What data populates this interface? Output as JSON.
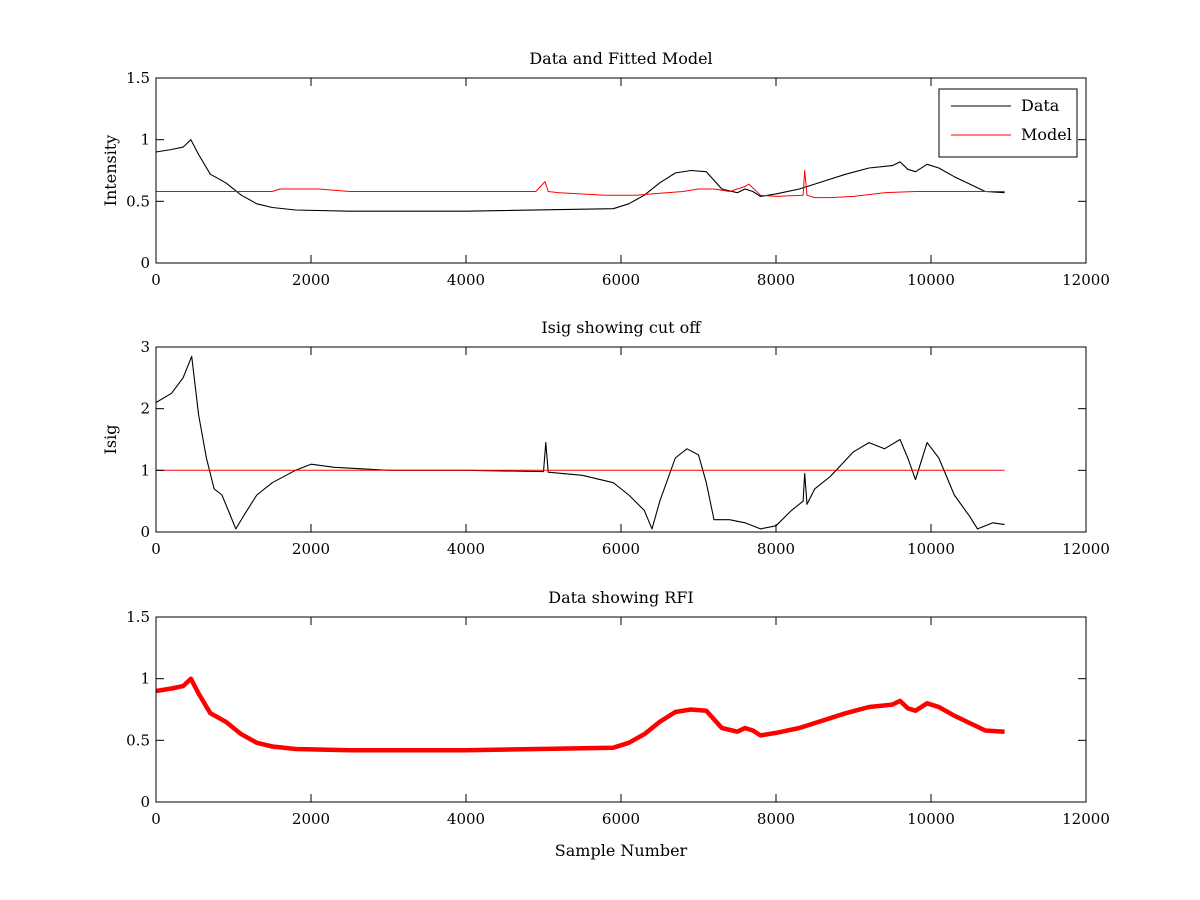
{
  "figure": {
    "background": "#ffffff"
  },
  "chart_data": [
    {
      "type": "line",
      "title": "Data and Fitted Model",
      "xlabel": "",
      "ylabel": "Intensity",
      "xlim": [
        0,
        12000
      ],
      "ylim": [
        0,
        1.5
      ],
      "xticks": [
        0,
        2000,
        4000,
        6000,
        8000,
        10000,
        12000
      ],
      "yticks": [
        0,
        0.5,
        1,
        1.5
      ],
      "xtick_labels": [
        "0",
        "2000",
        "4000",
        "6000",
        "8000",
        "10000",
        "12000"
      ],
      "ytick_labels": [
        "0",
        "0.5",
        "1",
        "1.5"
      ],
      "grid": false,
      "legend": "top-right",
      "series": [
        {
          "name": "Data",
          "color": "#000000",
          "x": [
            0,
            200,
            350,
            450,
            550,
            700,
            900,
            1100,
            1300,
            1500,
            1800,
            2500,
            4000,
            5900,
            6100,
            6300,
            6500,
            6700,
            6900,
            7100,
            7300,
            7500,
            7600,
            7700,
            7800,
            8000,
            8300,
            8600,
            8900,
            9200,
            9500,
            9600,
            9700,
            9800,
            9950,
            10100,
            10300,
            10500,
            10700,
            10950
          ],
          "y": [
            0.9,
            0.92,
            0.94,
            1.0,
            0.88,
            0.72,
            0.65,
            0.55,
            0.48,
            0.45,
            0.43,
            0.42,
            0.42,
            0.44,
            0.48,
            0.55,
            0.65,
            0.73,
            0.75,
            0.74,
            0.6,
            0.57,
            0.6,
            0.58,
            0.54,
            0.56,
            0.6,
            0.66,
            0.72,
            0.77,
            0.79,
            0.82,
            0.76,
            0.74,
            0.8,
            0.77,
            0.7,
            0.64,
            0.58,
            0.57
          ]
        },
        {
          "name": "Model",
          "color": "#ff0000",
          "x": [
            0,
            1500,
            1600,
            2000,
            2100,
            2500,
            2900,
            4000,
            4900,
            5020,
            5060,
            5200,
            5800,
            6200,
            6400,
            6800,
            7000,
            7200,
            7400,
            7600,
            7650,
            7800,
            8000,
            8350,
            8370,
            8400,
            8500,
            8700,
            9000,
            9400,
            9800,
            10500,
            10950
          ],
          "y": [
            0.58,
            0.58,
            0.6,
            0.6,
            0.6,
            0.58,
            0.58,
            0.58,
            0.58,
            0.66,
            0.58,
            0.57,
            0.55,
            0.55,
            0.56,
            0.58,
            0.6,
            0.6,
            0.58,
            0.62,
            0.64,
            0.55,
            0.54,
            0.55,
            0.75,
            0.55,
            0.53,
            0.53,
            0.54,
            0.57,
            0.58,
            0.58,
            0.58
          ]
        }
      ]
    },
    {
      "type": "line",
      "title": "Isig showing cut off",
      "xlabel": "",
      "ylabel": "Isig",
      "xlim": [
        0,
        12000
      ],
      "ylim": [
        0,
        3
      ],
      "xticks": [
        0,
        2000,
        4000,
        6000,
        8000,
        10000,
        12000
      ],
      "yticks": [
        0,
        1,
        2,
        3
      ],
      "xtick_labels": [
        "0",
        "2000",
        "4000",
        "6000",
        "8000",
        "10000",
        "12000"
      ],
      "ytick_labels": [
        "0",
        "1",
        "2",
        "3"
      ],
      "grid": false,
      "series": [
        {
          "color": "#000000",
          "x": [
            0,
            200,
            350,
            460,
            550,
            650,
            750,
            850,
            950,
            1030,
            1150,
            1300,
            1500,
            1800,
            2000,
            2300,
            3000,
            4000,
            5000,
            5030,
            5060,
            5500,
            5900,
            6100,
            6300,
            6400,
            6500,
            6700,
            6850,
            7000,
            7100,
            7200,
            7400,
            7600,
            7800,
            8000,
            8200,
            8350,
            8370,
            8400,
            8500,
            8700,
            9000,
            9200,
            9400,
            9600,
            9700,
            9800,
            9950,
            10100,
            10300,
            10500,
            10600,
            10800,
            10950
          ],
          "y": [
            2.1,
            2.25,
            2.5,
            2.85,
            1.9,
            1.2,
            0.7,
            0.6,
            0.3,
            0.05,
            0.3,
            0.6,
            0.8,
            1.0,
            1.1,
            1.05,
            1.0,
            1.0,
            0.98,
            1.45,
            0.97,
            0.92,
            0.8,
            0.6,
            0.35,
            0.05,
            0.5,
            1.2,
            1.35,
            1.25,
            0.8,
            0.2,
            0.2,
            0.15,
            0.05,
            0.1,
            0.35,
            0.5,
            0.95,
            0.45,
            0.7,
            0.9,
            1.3,
            1.45,
            1.35,
            1.5,
            1.2,
            0.85,
            1.45,
            1.2,
            0.6,
            0.25,
            0.05,
            0.15,
            0.12
          ]
        },
        {
          "color": "#ff0000",
          "x": [
            0,
            10950
          ],
          "y": [
            1.0,
            1.0
          ]
        }
      ]
    },
    {
      "type": "line",
      "title": "Data showing RFI",
      "xlabel": "Sample Number",
      "ylabel": "",
      "xlim": [
        0,
        12000
      ],
      "ylim": [
        0,
        1.5
      ],
      "xticks": [
        0,
        2000,
        4000,
        6000,
        8000,
        10000,
        12000
      ],
      "yticks": [
        0,
        0.5,
        1,
        1.5
      ],
      "xtick_labels": [
        "0",
        "2000",
        "4000",
        "6000",
        "8000",
        "10000",
        "12000"
      ],
      "ytick_labels": [
        "0",
        "0.5",
        "1",
        "1.5"
      ],
      "grid": false,
      "series": [
        {
          "color": "#ff0000",
          "x": [
            0,
            200,
            350,
            450,
            550,
            700,
            900,
            1100,
            1300,
            1500,
            1800,
            2500,
            4000,
            5900,
            6100,
            6300,
            6500,
            6700,
            6900,
            7100,
            7300,
            7500,
            7600,
            7700,
            7800,
            8000,
            8300,
            8600,
            8900,
            9200,
            9500,
            9600,
            9700,
            9800,
            9950,
            10100,
            10300,
            10500,
            10700,
            10950
          ],
          "y": [
            0.9,
            0.92,
            0.94,
            1.0,
            0.88,
            0.72,
            0.65,
            0.55,
            0.48,
            0.45,
            0.43,
            0.42,
            0.42,
            0.44,
            0.48,
            0.55,
            0.65,
            0.73,
            0.75,
            0.74,
            0.6,
            0.57,
            0.6,
            0.58,
            0.54,
            0.56,
            0.6,
            0.66,
            0.72,
            0.77,
            0.79,
            0.82,
            0.76,
            0.74,
            0.8,
            0.77,
            0.7,
            0.64,
            0.58,
            0.57
          ]
        }
      ]
    }
  ]
}
